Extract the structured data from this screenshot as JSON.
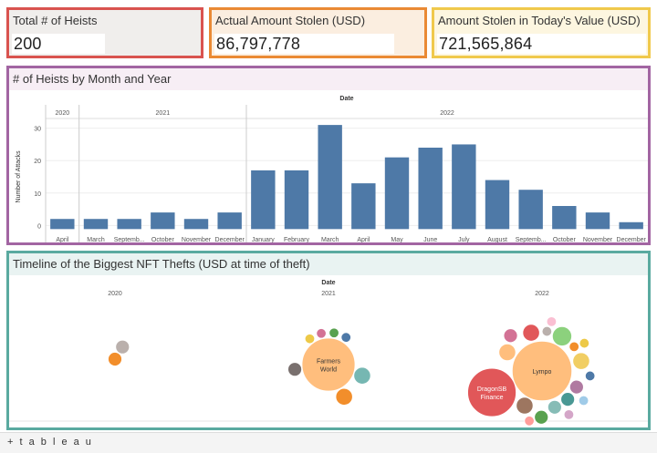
{
  "kpis": [
    {
      "title": "Total # of Heists",
      "value": "200",
      "border": "#d9534f",
      "bg": "#f0eeec"
    },
    {
      "title": "Actual Amount Stolen (USD)",
      "value": "86,797,778",
      "border": "#ea8a34",
      "bg": "#fbeee0"
    },
    {
      "title": "Amount Stolen in Today's Value (USD)",
      "value": "721,565,864",
      "border": "#f0c94c",
      "bg": "#fdf6e0"
    }
  ],
  "bar_panel": {
    "title": "# of Heists by Month and Year",
    "border": "#a265a2",
    "title_bg": "#f7eef5"
  },
  "timeline_panel": {
    "title": "Timeline of the Biggest NFT Thefts (USD at time of theft)",
    "border": "#5aaaa0",
    "title_bg": "#e9f3f2"
  },
  "footer": {
    "logo": "+ t a b l e a u"
  },
  "chart_data": [
    {
      "type": "bar",
      "header": "Date",
      "ylabel": "Number of Attacks",
      "yticks": [
        0,
        10,
        20,
        30
      ],
      "ylim": [
        -3,
        33
      ],
      "bar_color": "#4e79a7",
      "years": [
        {
          "label": "2020",
          "months": [
            "April"
          ],
          "values": [
            2
          ]
        },
        {
          "label": "2021",
          "months": [
            "March",
            "Septemb...",
            "October",
            "November",
            "December"
          ],
          "values": [
            2,
            2,
            4,
            2,
            4
          ]
        },
        {
          "label": "2022",
          "months": [
            "January",
            "February",
            "March",
            "April",
            "May",
            "June",
            "July",
            "August",
            "Septemb...",
            "October",
            "November",
            "December"
          ],
          "values": [
            17,
            17,
            31,
            13,
            21,
            24,
            25,
            14,
            11,
            6,
            4,
            1
          ]
        }
      ]
    },
    {
      "type": "scatter",
      "header": "Date",
      "years": [
        "2020",
        "2021",
        "2022"
      ],
      "bubbles": [
        {
          "year": "2020",
          "label": "",
          "value": 2,
          "color": "#f28e2b"
        },
        {
          "year": "2020",
          "label": "",
          "value": 2,
          "color": "#bab0ac"
        },
        {
          "year": "2021",
          "label": "Farmers World",
          "value": 30,
          "color": "#ffbe7d"
        },
        {
          "year": "2021",
          "label": "",
          "value": 3,
          "color": "#76b7b2"
        },
        {
          "year": "2021",
          "label": "",
          "value": 3,
          "color": "#f28e2b"
        },
        {
          "year": "2021",
          "label": "",
          "value": 2,
          "color": "#79706e"
        },
        {
          "year": "2021",
          "label": "",
          "value": 1,
          "color": "#edc948"
        },
        {
          "year": "2021",
          "label": "",
          "value": 1,
          "color": "#d37295"
        },
        {
          "year": "2021",
          "label": "",
          "value": 1,
          "color": "#59a14f"
        },
        {
          "year": "2021",
          "label": "",
          "value": 1,
          "color": "#4e79a7"
        },
        {
          "year": "2022",
          "label": "Lympo",
          "value": 38,
          "color": "#ffbe7d"
        },
        {
          "year": "2022",
          "label": "DragonSB Finance",
          "value": 25,
          "color": "#e15759"
        },
        {
          "year": "2022",
          "label": "",
          "value": 4,
          "color": "#8cd17d"
        },
        {
          "year": "2022",
          "label": "",
          "value": 3,
          "color": "#9d7660"
        },
        {
          "year": "2022",
          "label": "",
          "value": 3,
          "color": "#ffbe7d"
        },
        {
          "year": "2022",
          "label": "",
          "value": 3,
          "color": "#e15759"
        },
        {
          "year": "2022",
          "label": "",
          "value": 3,
          "color": "#f1ce63"
        },
        {
          "year": "2022",
          "label": "",
          "value": 2,
          "color": "#b07aa1"
        },
        {
          "year": "2022",
          "label": "",
          "value": 2,
          "color": "#499894"
        },
        {
          "year": "2022",
          "label": "",
          "value": 2,
          "color": "#86bcb6"
        },
        {
          "year": "2022",
          "label": "",
          "value": 2,
          "color": "#59a14f"
        },
        {
          "year": "2022",
          "label": "",
          "value": 2,
          "color": "#d37295"
        },
        {
          "year": "2022",
          "label": "",
          "value": 1,
          "color": "#bab0ac"
        },
        {
          "year": "2022",
          "label": "",
          "value": 1,
          "color": "#f28e2b"
        },
        {
          "year": "2022",
          "label": "",
          "value": 1,
          "color": "#4e79a7"
        },
        {
          "year": "2022",
          "label": "",
          "value": 1,
          "color": "#fabfd2"
        },
        {
          "year": "2022",
          "label": "",
          "value": 1,
          "color": "#edc948"
        },
        {
          "year": "2022",
          "label": "",
          "value": 1,
          "color": "#a0cbe8"
        },
        {
          "year": "2022",
          "label": "",
          "value": 1,
          "color": "#d4a6c8"
        },
        {
          "year": "2022",
          "label": "",
          "value": 1,
          "color": "#ff9d9a"
        }
      ]
    }
  ]
}
